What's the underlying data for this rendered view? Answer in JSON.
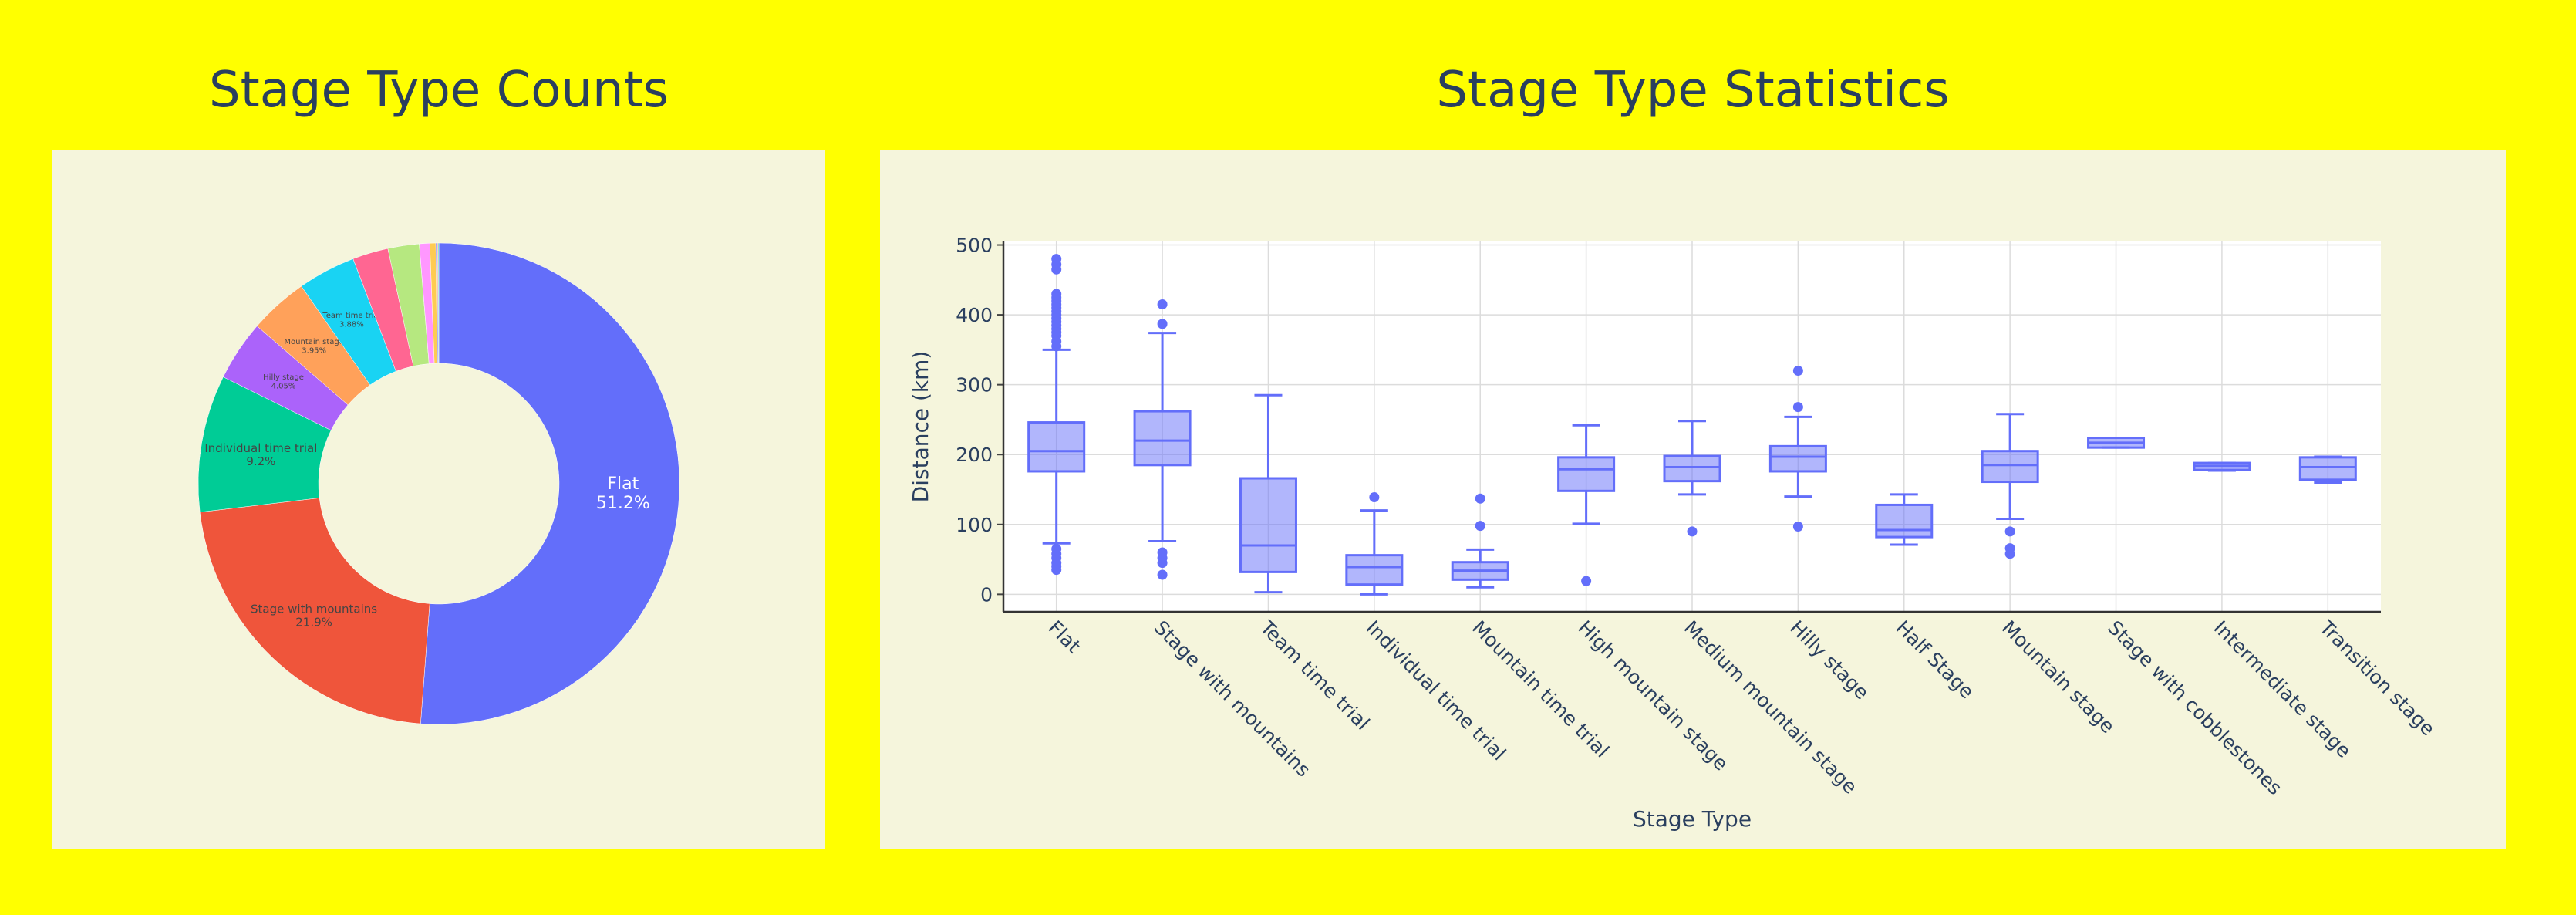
{
  "titles": {
    "pie": "Stage Type Counts",
    "box": "Stage Type Statistics"
  },
  "chart_data": [
    {
      "type": "pie",
      "hole": 0.5,
      "title": "Stage Type Counts",
      "slices": [
        {
          "label": "Flat",
          "percent": 51.2,
          "text": "51.2%",
          "color": "#636efa"
        },
        {
          "label": "Stage with mountains",
          "percent": 21.9,
          "text": "21.9%",
          "color": "#ef553b"
        },
        {
          "label": "Individual time trial",
          "percent": 9.2,
          "text": "9.2%",
          "color": "#00cc96"
        },
        {
          "label": "Hilly stage",
          "percent": 4.05,
          "text": "4.05%",
          "color": "#ab63fa"
        },
        {
          "label": "Mountain stage",
          "percent": 3.95,
          "text": "3.95%",
          "color": "#ffa15a"
        },
        {
          "label": "Team time trial",
          "percent": 3.88,
          "text": "3.88%",
          "color": "#19d3f3"
        },
        {
          "label": "High mountain stage",
          "percent": 2.4,
          "text": "",
          "color": "#ff6692"
        },
        {
          "label": "Medium mountain stage",
          "percent": 2.1,
          "text": "",
          "color": "#b6e880"
        },
        {
          "label": "Mountain time trial",
          "percent": 0.7,
          "text": "",
          "color": "#ff97ff"
        },
        {
          "label": "Half Stage",
          "percent": 0.4,
          "text": "",
          "color": "#fecb52"
        },
        {
          "label": "Stage with cobblestones",
          "percent": 0.1,
          "text": "",
          "color": "#636efa"
        },
        {
          "label": "Intermediate stage",
          "percent": 0.05,
          "text": "",
          "color": "#ef553b"
        },
        {
          "label": "Transition stage",
          "percent": 0.05,
          "text": "",
          "color": "#00cc96"
        }
      ]
    },
    {
      "type": "box",
      "title": "Stage Type Statistics",
      "xlabel": "Stage Type",
      "ylabel": "Distance (km)",
      "ylim": [
        -25,
        505
      ],
      "yticks": [
        0,
        100,
        200,
        300,
        400,
        500
      ],
      "color": "#636efa",
      "boxes": [
        {
          "category": "Flat",
          "min": 73,
          "q1": 176,
          "median": 205,
          "q3": 246,
          "max": 350,
          "outliers": [
            480,
            472,
            465,
            430,
            425,
            420,
            415,
            410,
            405,
            400,
            395,
            390,
            385,
            380,
            375,
            370,
            362,
            355,
            65,
            58,
            52,
            45,
            40,
            35
          ]
        },
        {
          "category": "Stage with mountains",
          "min": 76,
          "q1": 185,
          "median": 220,
          "q3": 262,
          "max": 374,
          "outliers": [
            415,
            387,
            60,
            52,
            45,
            28
          ]
        },
        {
          "category": "Team time trial",
          "min": 3,
          "q1": 32,
          "median": 70,
          "q3": 166,
          "max": 285,
          "outliers": []
        },
        {
          "category": "Individual time trial",
          "min": 0,
          "q1": 14,
          "median": 39,
          "q3": 56,
          "max": 120,
          "outliers": [
            139
          ]
        },
        {
          "category": "Mountain time trial",
          "min": 10,
          "q1": 21,
          "median": 34,
          "q3": 46,
          "max": 64,
          "outliers": [
            137,
            98
          ]
        },
        {
          "category": "High mountain stage",
          "min": 101,
          "q1": 148,
          "median": 179,
          "q3": 196,
          "max": 242,
          "outliers": [
            19
          ]
        },
        {
          "category": "Medium mountain stage",
          "min": 143,
          "q1": 162,
          "median": 182,
          "q3": 198,
          "max": 248,
          "outliers": [
            90
          ]
        },
        {
          "category": "Hilly stage",
          "min": 140,
          "q1": 176,
          "median": 197,
          "q3": 212,
          "max": 254,
          "outliers": [
            320,
            268,
            97
          ]
        },
        {
          "category": "Half Stage",
          "min": 71,
          "q1": 82,
          "median": 92,
          "q3": 128,
          "max": 143,
          "outliers": []
        },
        {
          "category": "Mountain stage",
          "min": 108,
          "q1": 161,
          "median": 185,
          "q3": 205,
          "max": 258,
          "outliers": [
            90,
            66,
            58
          ]
        },
        {
          "category": "Stage with cobblestones",
          "min": 210,
          "q1": 210,
          "median": 217,
          "q3": 224,
          "max": 224,
          "outliers": []
        },
        {
          "category": "Intermediate stage",
          "min": 177,
          "q1": 178,
          "median": 184,
          "q3": 188,
          "max": 188,
          "outliers": []
        },
        {
          "category": "Transition stage",
          "min": 160,
          "q1": 164,
          "median": 182,
          "q3": 196,
          "max": 197,
          "outliers": []
        }
      ]
    }
  ]
}
